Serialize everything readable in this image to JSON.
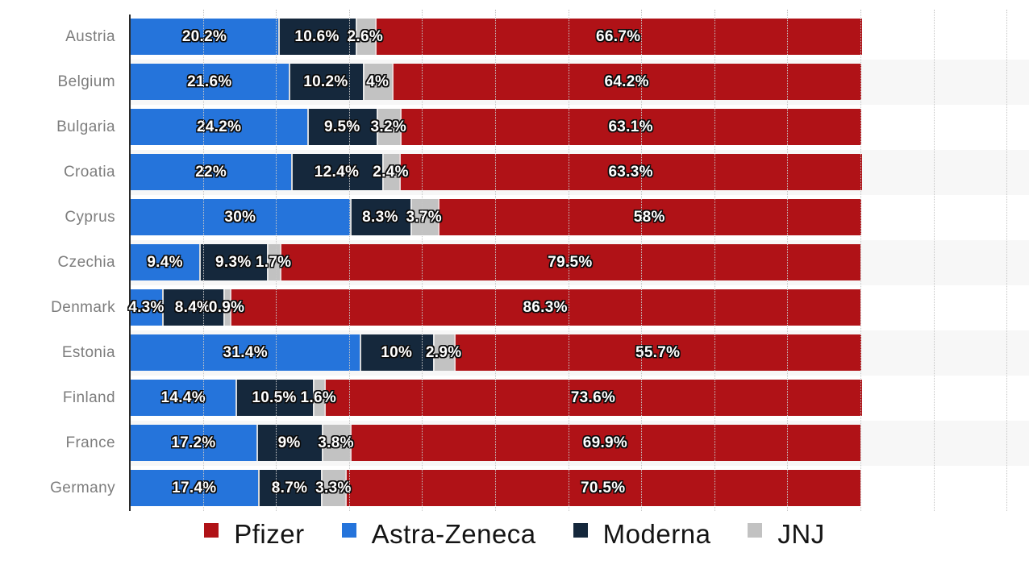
{
  "chart_data": {
    "type": "bar",
    "orientation": "horizontal",
    "stacked": true,
    "title": "",
    "xlabel": "",
    "ylabel": "",
    "xlim": [
      0,
      123
    ],
    "gridlines": "vertical dotted every 10%",
    "row_stripe_pattern": "alternate rows shaded, starting with second row",
    "legend_position": "bottom",
    "categories": [
      "Austria",
      "Belgium",
      "Bulgaria",
      "Croatia",
      "Cyprus",
      "Czechia",
      "Denmark",
      "Estonia",
      "Finland",
      "France",
      "Germany"
    ],
    "series": [
      {
        "name": "Astra-Zeneca",
        "color": "#2574db",
        "values": [
          20.2,
          21.6,
          24.2,
          22,
          30,
          9.4,
          4.3,
          31.4,
          14.4,
          17.2,
          17.4
        ],
        "labels": [
          "20.2%",
          "21.6%",
          "24.2%",
          "22%",
          "30%",
          "9.4%",
          "4.3%",
          "31.4%",
          "14.4%",
          "17.2%",
          "17.4%"
        ]
      },
      {
        "name": "Moderna",
        "color": "#15283c",
        "values": [
          10.6,
          10.2,
          9.5,
          12.4,
          8.3,
          9.3,
          8.4,
          10,
          10.5,
          9,
          8.7
        ],
        "labels": [
          "10.6%",
          "10.2%",
          "9.5%",
          "12.4%",
          "8.3%",
          "9.3%",
          "8.4%",
          "10%",
          "10.5%",
          "9%",
          "8.7%"
        ]
      },
      {
        "name": "JNJ",
        "color": "#c2c2c2",
        "values": [
          2.6,
          4,
          3.2,
          2.4,
          3.7,
          1.7,
          0.9,
          2.9,
          1.6,
          3.8,
          3.3
        ],
        "labels": [
          "2.6%",
          "4%",
          "3.2%",
          "2.4%",
          "3.7%",
          "1.7%",
          "0.9%",
          "2.9%",
          "1.6%",
          "3.8%",
          "3.3%"
        ]
      },
      {
        "name": "Pfizer",
        "color": "#b01217",
        "values": [
          66.7,
          64.2,
          63.1,
          63.3,
          58,
          79.5,
          86.3,
          55.7,
          73.6,
          69.9,
          70.5
        ],
        "labels": [
          "66.7%",
          "64.2%",
          "63.1%",
          "63.3%",
          "58%",
          "79.5%",
          "86.3%",
          "55.7%",
          "73.6%",
          "69.9%",
          "70.5%"
        ]
      }
    ]
  },
  "legend": {
    "items": [
      {
        "label": "Pfizer",
        "color": "#b01217"
      },
      {
        "label": "Astra-Zeneca",
        "color": "#2574db"
      },
      {
        "label": "Moderna",
        "color": "#15283c"
      },
      {
        "label": "JNJ",
        "color": "#c2c2c2"
      }
    ]
  },
  "style": {
    "accent_red": "#b01217",
    "accent_blue": "#2574db",
    "accent_navy": "#15283c",
    "accent_gray": "#c2c2c2",
    "row_stripe_color": "#f7f7f7",
    "gridline_color": "#c6c6c6",
    "axis_line_color": "#2b2b2b",
    "category_label_color": "#7d7d7d"
  }
}
